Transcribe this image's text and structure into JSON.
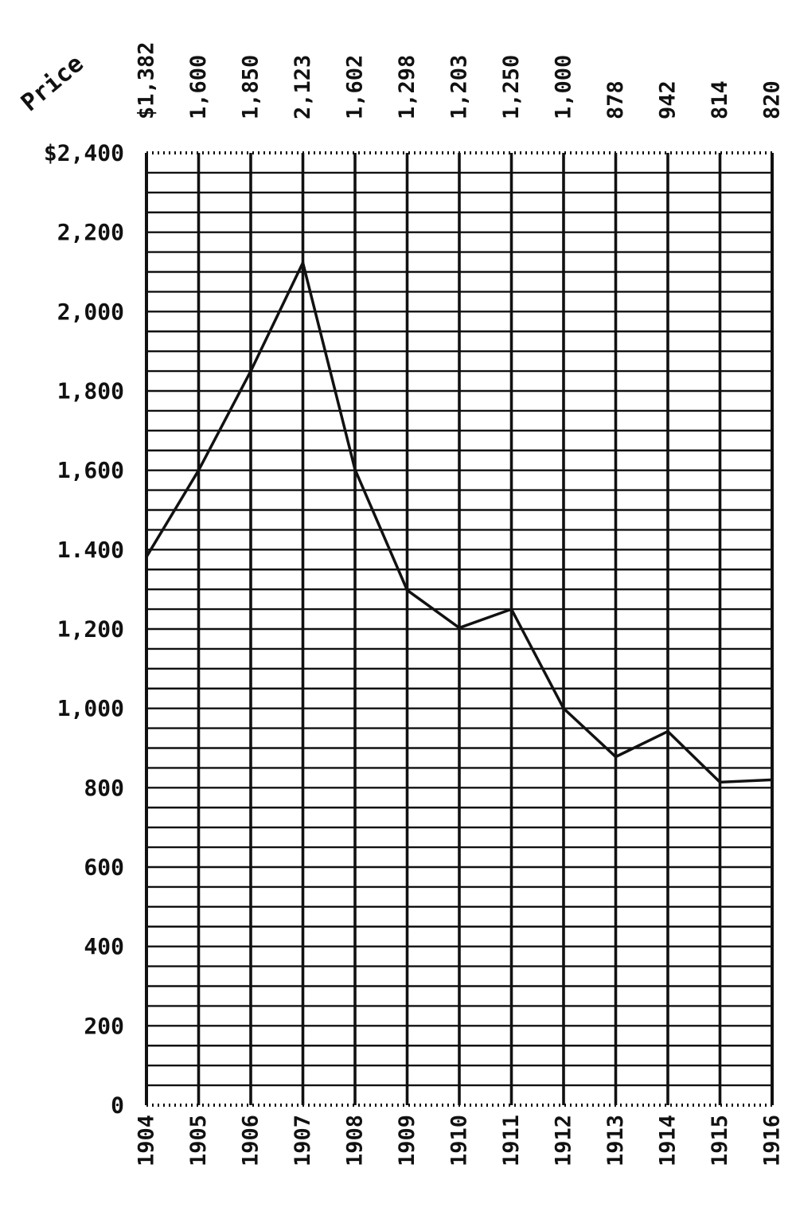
{
  "chart_data": {
    "type": "line",
    "ylabel": "Price",
    "x": [
      "1904",
      "1905",
      "1906",
      "1907",
      "1908",
      "1909",
      "1910",
      "1911",
      "1912",
      "1913",
      "1914",
      "1915",
      "1916"
    ],
    "series": [
      {
        "values": [
          1382,
          1600,
          1850,
          2123,
          1602,
          1298,
          1203,
          1250,
          1000,
          878,
          942,
          814,
          820
        ]
      }
    ],
    "value_labels": [
      "$1,382",
      "1,600",
      "1,850",
      "2,123",
      "1,602",
      "1,298",
      "1,203",
      "1,250",
      "1,000",
      "878",
      "942",
      "814",
      "820"
    ],
    "y_ticks": [
      0,
      200,
      400,
      600,
      800,
      1000,
      1200,
      1400,
      1600,
      1800,
      2000,
      2200,
      2400
    ],
    "y_tick_labels": [
      "0",
      "200",
      "400",
      "600",
      "800",
      "1,000",
      "1,200",
      "1.400",
      "1,600",
      "1,800",
      "2,000",
      "2,200",
      "$2,400"
    ],
    "ylim": [
      0,
      2400
    ],
    "grid": true,
    "minor_grid_step": 50,
    "colors": {
      "ink": "#111111",
      "paper": "#ffffff"
    }
  }
}
